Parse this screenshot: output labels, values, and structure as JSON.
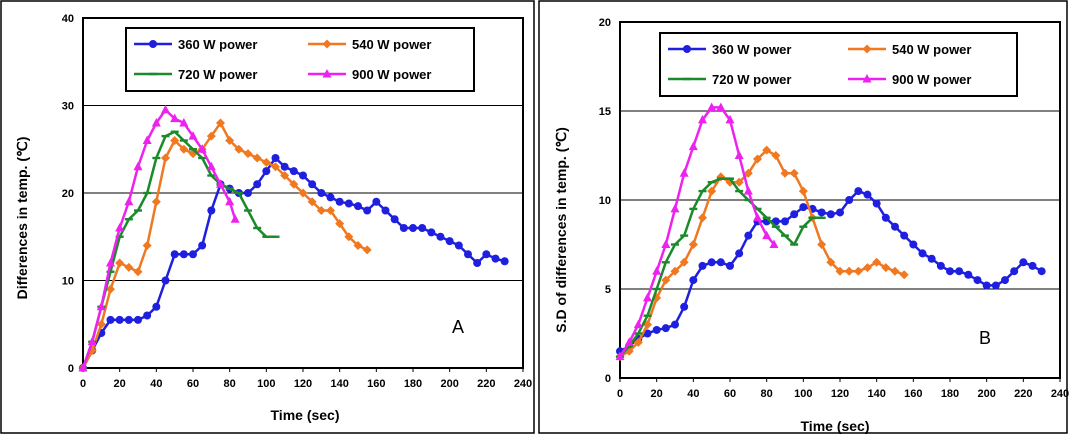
{
  "chart_data": [
    {
      "type": "line",
      "panel_label": "A",
      "xlabel": "Time (sec)",
      "ylabel": "Differences in temp. (℃)",
      "xlim": [
        0,
        240
      ],
      "ylim": [
        0,
        40
      ],
      "xticks": [
        0,
        20,
        40,
        60,
        80,
        100,
        120,
        140,
        160,
        180,
        200,
        220,
        240
      ],
      "yticks": [
        0,
        10,
        20,
        30,
        40
      ],
      "grid": "horizontal",
      "legend_position": "top",
      "series": [
        {
          "name": "360 W power",
          "color": "#1f1fe0",
          "marker": "circle",
          "x": [
            0,
            5,
            10,
            15,
            20,
            25,
            30,
            35,
            40,
            45,
            50,
            55,
            60,
            65,
            70,
            75,
            80,
            85,
            90,
            95,
            100,
            105,
            110,
            115,
            120,
            125,
            130,
            135,
            140,
            145,
            150,
            155,
            160,
            165,
            170,
            175,
            180,
            185,
            190,
            195,
            200,
            205,
            210,
            215,
            220,
            225,
            230
          ],
          "y": [
            0,
            2,
            4,
            5.5,
            5.5,
            5.5,
            5.5,
            6,
            7,
            10,
            13,
            13,
            13,
            14,
            18,
            21,
            20.5,
            20,
            20,
            21,
            22.5,
            24,
            23,
            22.5,
            22,
            21,
            20,
            19.5,
            19,
            18.8,
            18.5,
            18,
            19,
            18,
            17,
            16,
            16,
            16,
            15.5,
            15,
            14.5,
            14,
            13,
            12,
            13,
            12.5,
            12.2
          ]
        },
        {
          "name": "540 W power",
          "color": "#f07820",
          "marker": "diamond",
          "x": [
            0,
            5,
            10,
            15,
            20,
            25,
            30,
            35,
            40,
            45,
            50,
            55,
            60,
            65,
            70,
            75,
            80,
            85,
            90,
            95,
            100,
            105,
            110,
            115,
            120,
            125,
            130,
            135,
            140,
            145,
            150,
            155
          ],
          "y": [
            0,
            2,
            5,
            9,
            12,
            11.5,
            11,
            14,
            19,
            24,
            26,
            25,
            24.5,
            25,
            26.5,
            28,
            26,
            25,
            24.5,
            24,
            23.5,
            23,
            22,
            21,
            20,
            19,
            18,
            18,
            16.5,
            15,
            14,
            13.5
          ]
        },
        {
          "name": "720 W power",
          "color": "#1a8a2a",
          "marker": "dash",
          "x": [
            0,
            5,
            10,
            15,
            20,
            25,
            30,
            35,
            40,
            45,
            50,
            55,
            60,
            65,
            70,
            75,
            80,
            85,
            90,
            95,
            100,
            105
          ],
          "y": [
            0,
            3,
            7,
            11,
            15,
            17,
            18,
            20,
            24,
            26.5,
            27,
            26,
            25,
            24,
            22,
            21,
            20.5,
            20,
            18,
            16,
            15,
            15
          ]
        },
        {
          "name": "900 W power",
          "color": "#ee22ee",
          "marker": "triangle",
          "x": [
            0,
            5,
            10,
            15,
            20,
            25,
            30,
            35,
            40,
            45,
            50,
            55,
            60,
            65,
            70,
            75,
            80,
            83
          ],
          "y": [
            0,
            3,
            7,
            12,
            16,
            19,
            23,
            26,
            28,
            29.5,
            28.5,
            28,
            26.5,
            25,
            23,
            21,
            19,
            17
          ]
        }
      ]
    },
    {
      "type": "line",
      "panel_label": "B",
      "xlabel": "Time (sec)",
      "ylabel": "S.D of  differences in temp. (℃)",
      "xlim": [
        0,
        240
      ],
      "ylim": [
        0,
        20
      ],
      "xticks": [
        0,
        20,
        40,
        60,
        80,
        100,
        120,
        140,
        160,
        180,
        200,
        220,
        240
      ],
      "yticks": [
        0,
        5,
        10,
        15,
        20
      ],
      "grid": "horizontal",
      "legend_position": "top",
      "series": [
        {
          "name": "360 W power",
          "color": "#1f1fe0",
          "marker": "circle",
          "x": [
            0,
            5,
            10,
            15,
            20,
            25,
            30,
            35,
            40,
            45,
            50,
            55,
            60,
            65,
            70,
            75,
            80,
            85,
            90,
            95,
            100,
            105,
            110,
            115,
            120,
            125,
            130,
            135,
            140,
            145,
            150,
            155,
            160,
            165,
            170,
            175,
            180,
            185,
            190,
            195,
            200,
            205,
            210,
            215,
            220,
            225,
            230
          ],
          "y": [
            1.5,
            1.8,
            2.2,
            2.5,
            2.7,
            2.8,
            3,
            4,
            5.5,
            6.3,
            6.5,
            6.5,
            6.3,
            7,
            8,
            8.8,
            8.8,
            8.8,
            8.8,
            9.2,
            9.6,
            9.5,
            9.3,
            9.2,
            9.3,
            10,
            10.5,
            10.3,
            9.8,
            9,
            8.5,
            8,
            7.5,
            7,
            6.7,
            6.3,
            6,
            6,
            5.8,
            5.5,
            5.2,
            5.2,
            5.5,
            6,
            6.5,
            6.3,
            6
          ]
        },
        {
          "name": "540 W power",
          "color": "#f07820",
          "marker": "diamond",
          "x": [
            0,
            5,
            10,
            15,
            20,
            25,
            30,
            35,
            40,
            45,
            50,
            55,
            60,
            65,
            70,
            75,
            80,
            85,
            90,
            95,
            100,
            105,
            110,
            115,
            120,
            125,
            130,
            135,
            140,
            145,
            150,
            155
          ],
          "y": [
            1.2,
            1.5,
            2,
            3,
            4.5,
            5.5,
            6,
            6.5,
            7.5,
            9,
            10.5,
            11.3,
            11,
            11,
            11.5,
            12.3,
            12.8,
            12.5,
            11.5,
            11.5,
            10.5,
            9,
            7.5,
            6.5,
            6,
            6,
            6,
            6.2,
            6.5,
            6.2,
            6,
            5.8
          ]
        },
        {
          "name": "720 W power",
          "color": "#1a8a2a",
          "marker": "dash",
          "x": [
            0,
            5,
            10,
            15,
            20,
            25,
            30,
            35,
            40,
            45,
            50,
            55,
            60,
            65,
            70,
            75,
            80,
            85,
            90,
            95,
            100,
            105,
            110
          ],
          "y": [
            1.2,
            1.8,
            2.5,
            3.5,
            5,
            6.5,
            7.5,
            8,
            9.5,
            10.5,
            11,
            11.2,
            11.2,
            10.5,
            10,
            9.5,
            9,
            8.5,
            8,
            7.5,
            8.5,
            9,
            9
          ]
        },
        {
          "name": "900 W power",
          "color": "#ee22ee",
          "marker": "triangle",
          "x": [
            0,
            5,
            10,
            15,
            20,
            25,
            30,
            35,
            40,
            45,
            50,
            55,
            60,
            65,
            70,
            75,
            80,
            84
          ],
          "y": [
            1.2,
            2,
            3,
            4.5,
            6,
            7.5,
            9.5,
            11.5,
            13,
            14.5,
            15.2,
            15.2,
            14.5,
            12.5,
            10.5,
            9,
            8,
            7.5
          ]
        }
      ]
    }
  ]
}
